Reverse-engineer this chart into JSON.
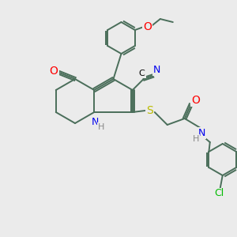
{
  "bg_color": "#ebebeb",
  "bond_color": "#4a6e5a",
  "atom_colors": {
    "O": "#ff0000",
    "N": "#0000ee",
    "S": "#bbbb00",
    "Cl": "#00bb00",
    "C": "#000000",
    "H": "#888888"
  },
  "figsize": [
    3.0,
    3.0
  ],
  "dpi": 100
}
